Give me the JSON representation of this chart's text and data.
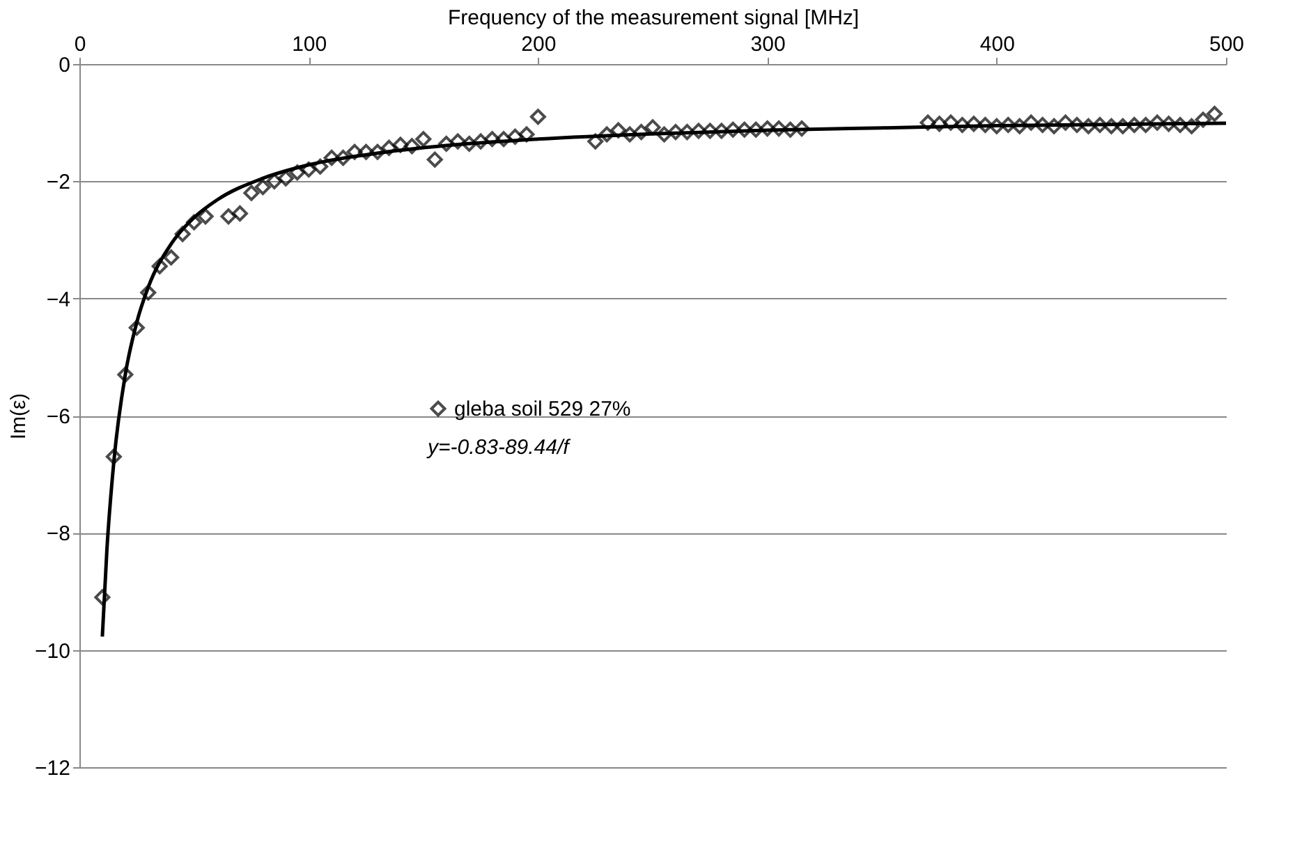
{
  "chart_data": {
    "type": "scatter",
    "xlabel": "Frequency of the measurement signal  [MHz]",
    "ylabel": "Im(ε)",
    "xlim": [
      0,
      500
    ],
    "xticks": [
      0,
      100,
      200,
      300,
      400,
      500
    ],
    "ylim": [
      -12,
      0
    ],
    "yticks": [
      -12,
      -10,
      -8,
      -6,
      -4,
      -2,
      0
    ],
    "grid": "y",
    "legend": "center",
    "marker": "diamond",
    "annotations": [
      "y=-0.83-89.44/f"
    ],
    "series": [
      {
        "name": "gleba soil 529 27%",
        "color": "#000000",
        "x": [
          10,
          15,
          20,
          25,
          30,
          35,
          40,
          45,
          50,
          55,
          65,
          70,
          75,
          80,
          85,
          90,
          95,
          100,
          105,
          110,
          115,
          120,
          125,
          130,
          135,
          140,
          145,
          150,
          155,
          160,
          165,
          170,
          175,
          180,
          185,
          190,
          195,
          200,
          225,
          230,
          235,
          240,
          245,
          250,
          255,
          260,
          265,
          270,
          275,
          280,
          285,
          290,
          295,
          300,
          305,
          310,
          315,
          370,
          375,
          380,
          385,
          390,
          395,
          400,
          405,
          410,
          415,
          420,
          425,
          430,
          435,
          440,
          445,
          450,
          455,
          460,
          465,
          470,
          475,
          480,
          485,
          490,
          495
        ],
        "values": [
          -9.1,
          -6.7,
          -5.3,
          -4.5,
          -3.9,
          -3.45,
          -3.3,
          -2.9,
          -2.7,
          -2.6,
          -2.6,
          -2.55,
          -2.2,
          -2.1,
          -2.0,
          -1.95,
          -1.85,
          -1.8,
          -1.75,
          -1.6,
          -1.6,
          -1.5,
          -1.5,
          -1.5,
          -1.43,
          -1.38,
          -1.4,
          -1.28,
          -1.63,
          -1.36,
          -1.32,
          -1.36,
          -1.32,
          -1.28,
          -1.28,
          -1.24,
          -1.2,
          -0.9,
          -1.32,
          -1.2,
          -1.13,
          -1.2,
          -1.16,
          -1.08,
          -1.2,
          -1.16,
          -1.16,
          -1.14,
          -1.14,
          -1.14,
          -1.12,
          -1.12,
          -1.12,
          -1.1,
          -1.1,
          -1.12,
          -1.1,
          -1.0,
          -1.02,
          -1.0,
          -1.04,
          -1.02,
          -1.04,
          -1.06,
          -1.04,
          -1.06,
          -1.0,
          -1.04,
          -1.06,
          -1.0,
          -1.04,
          -1.06,
          -1.04,
          -1.06,
          -1.06,
          -1.04,
          -1.04,
          -1.0,
          -1.02,
          -1.04,
          -1.06,
          -0.95,
          -0.85
        ]
      },
      {
        "type": "line",
        "color": "#000000",
        "line_style": "solid",
        "marker": "none",
        "x": [
          10,
          12,
          15,
          20,
          25,
          30,
          40,
          50,
          60,
          80,
          100,
          130,
          160,
          200,
          250,
          300,
          350,
          400,
          450,
          500
        ],
        "values": [
          -9.77,
          -8.28,
          -6.79,
          -5.3,
          -4.41,
          -3.81,
          -3.07,
          -2.62,
          -2.32,
          -1.95,
          -1.72,
          -1.52,
          -1.39,
          -1.28,
          -1.19,
          -1.13,
          -1.09,
          -1.05,
          -1.03,
          -1.01
        ]
      }
    ]
  }
}
